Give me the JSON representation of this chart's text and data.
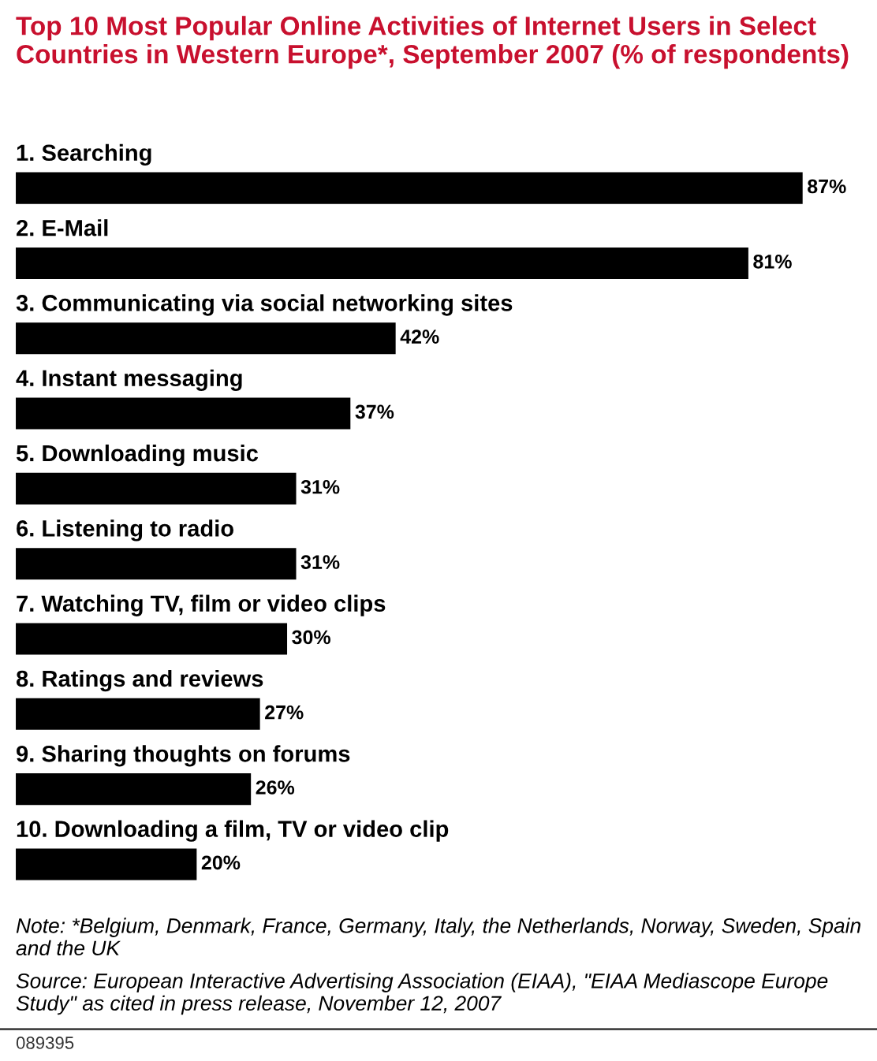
{
  "chart_data": {
    "type": "bar",
    "orientation": "horizontal",
    "title": "Top 10 Most Popular Online Activities of Internet Users in Select Countries in Western Europe*, September 2007 (% of respondents)",
    "categories": [
      "1. Searching",
      "2. E-Mail",
      "3. Communicating via social networking sites",
      "4. Instant messaging",
      "5. Downloading music",
      "6. Listening to radio",
      "7. Watching TV, film or video clips",
      "8. Ratings and reviews",
      "9. Sharing thoughts on forums",
      "10. Downloading a film, TV or video clip"
    ],
    "values": [
      87,
      81,
      42,
      37,
      31,
      31,
      30,
      27,
      26,
      20
    ],
    "value_labels": [
      "87%",
      "81%",
      "42%",
      "37%",
      "31%",
      "31%",
      "30%",
      "27%",
      "26%",
      "20%"
    ],
    "color": "#000000",
    "annotations": [
      "Note: *Belgium, Denmark, France, Germany, Italy, the Netherlands, Norway, Sweden, Spain and the UK",
      "Source: European Interactive Advertising Association (EIAA), \"EIAA Mediascope Europe Study\" as cited in press release, November 12, 2007",
      "089395"
    ]
  }
}
